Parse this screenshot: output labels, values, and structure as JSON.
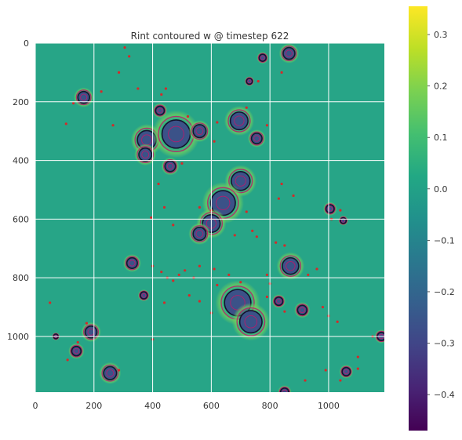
{
  "chart_data": {
    "type": "heatmap",
    "title": "Rint contoured w @ timestep 622",
    "xlabel": "",
    "ylabel": "",
    "xlim": [
      0,
      1190
    ],
    "ylim": [
      1190,
      0
    ],
    "xticks": [
      0,
      200,
      400,
      600,
      800,
      1000
    ],
    "yticks": [
      0,
      200,
      400,
      600,
      800,
      1000
    ],
    "grid": true,
    "colormap": "viridis",
    "colorbar": {
      "min": -0.47,
      "max": 0.355,
      "ticks": [
        0.3,
        0.2,
        0.1,
        0.0,
        -0.1,
        -0.2,
        -0.3,
        -0.4
      ],
      "tick_labels": [
        "0.3",
        "0.2",
        "0.1",
        "0.0",
        "−0.1",
        "−0.2",
        "−0.3",
        "−0.4"
      ]
    },
    "background_value": 0.03,
    "colors": {
      "field": "#27a587",
      "field_light": "#35b779",
      "dark_region": "#3b5288",
      "contour_dark": "#14142e",
      "contour_magenta": "#c0176a",
      "droplet_red": "#d42a2a"
    },
    "features": [
      {
        "x": 865,
        "y": 35,
        "r": 20
      },
      {
        "x": 775,
        "y": 50,
        "r": 12
      },
      {
        "x": 730,
        "y": 130,
        "r": 10
      },
      {
        "x": 165,
        "y": 185,
        "r": 20
      },
      {
        "x": 425,
        "y": 230,
        "r": 15
      },
      {
        "x": 695,
        "y": 265,
        "r": 30
      },
      {
        "x": 755,
        "y": 325,
        "r": 18
      },
      {
        "x": 380,
        "y": 330,
        "r": 32
      },
      {
        "x": 480,
        "y": 310,
        "r": 48
      },
      {
        "x": 560,
        "y": 300,
        "r": 22
      },
      {
        "x": 375,
        "y": 380,
        "r": 22
      },
      {
        "x": 460,
        "y": 420,
        "r": 18
      },
      {
        "x": 700,
        "y": 470,
        "r": 32
      },
      {
        "x": 640,
        "y": 545,
        "r": 42
      },
      {
        "x": 600,
        "y": 615,
        "r": 30
      },
      {
        "x": 560,
        "y": 650,
        "r": 22
      },
      {
        "x": 1005,
        "y": 565,
        "r": 14
      },
      {
        "x": 1050,
        "y": 605,
        "r": 10
      },
      {
        "x": 330,
        "y": 750,
        "r": 18
      },
      {
        "x": 870,
        "y": 760,
        "r": 28
      },
      {
        "x": 370,
        "y": 860,
        "r": 12
      },
      {
        "x": 690,
        "y": 885,
        "r": 45
      },
      {
        "x": 735,
        "y": 950,
        "r": 38
      },
      {
        "x": 830,
        "y": 880,
        "r": 14
      },
      {
        "x": 910,
        "y": 910,
        "r": 16
      },
      {
        "x": 190,
        "y": 985,
        "r": 20
      },
      {
        "x": 140,
        "y": 1050,
        "r": 16
      },
      {
        "x": 70,
        "y": 1000,
        "r": 8
      },
      {
        "x": 1180,
        "y": 1000,
        "r": 14
      },
      {
        "x": 255,
        "y": 1125,
        "r": 22
      },
      {
        "x": 1060,
        "y": 1120,
        "r": 14
      },
      {
        "x": 850,
        "y": 1190,
        "r": 14
      }
    ],
    "droplets": [
      {
        "x": 305,
        "y": 15
      },
      {
        "x": 320,
        "y": 45
      },
      {
        "x": 285,
        "y": 100
      },
      {
        "x": 350,
        "y": 155
      },
      {
        "x": 225,
        "y": 165
      },
      {
        "x": 130,
        "y": 205
      },
      {
        "x": 105,
        "y": 275
      },
      {
        "x": 265,
        "y": 280
      },
      {
        "x": 430,
        "y": 175
      },
      {
        "x": 445,
        "y": 155
      },
      {
        "x": 520,
        "y": 250
      },
      {
        "x": 610,
        "y": 335
      },
      {
        "x": 620,
        "y": 270
      },
      {
        "x": 790,
        "y": 280
      },
      {
        "x": 720,
        "y": 220
      },
      {
        "x": 840,
        "y": 100
      },
      {
        "x": 760,
        "y": 130
      },
      {
        "x": 840,
        "y": 480
      },
      {
        "x": 830,
        "y": 530
      },
      {
        "x": 880,
        "y": 520
      },
      {
        "x": 1040,
        "y": 570
      },
      {
        "x": 1010,
        "y": 600
      },
      {
        "x": 560,
        "y": 560
      },
      {
        "x": 720,
        "y": 575
      },
      {
        "x": 740,
        "y": 640
      },
      {
        "x": 755,
        "y": 660
      },
      {
        "x": 680,
        "y": 655
      },
      {
        "x": 820,
        "y": 680
      },
      {
        "x": 850,
        "y": 690
      },
      {
        "x": 400,
        "y": 760
      },
      {
        "x": 430,
        "y": 780
      },
      {
        "x": 450,
        "y": 800
      },
      {
        "x": 470,
        "y": 810
      },
      {
        "x": 490,
        "y": 790
      },
      {
        "x": 510,
        "y": 775
      },
      {
        "x": 540,
        "y": 800
      },
      {
        "x": 560,
        "y": 760
      },
      {
        "x": 610,
        "y": 770
      },
      {
        "x": 620,
        "y": 825
      },
      {
        "x": 660,
        "y": 790
      },
      {
        "x": 700,
        "y": 815
      },
      {
        "x": 790,
        "y": 790
      },
      {
        "x": 800,
        "y": 820
      },
      {
        "x": 930,
        "y": 790
      },
      {
        "x": 960,
        "y": 770
      },
      {
        "x": 440,
        "y": 885
      },
      {
        "x": 525,
        "y": 860
      },
      {
        "x": 560,
        "y": 880
      },
      {
        "x": 600,
        "y": 920
      },
      {
        "x": 790,
        "y": 865
      },
      {
        "x": 850,
        "y": 915
      },
      {
        "x": 980,
        "y": 900
      },
      {
        "x": 1000,
        "y": 930
      },
      {
        "x": 1030,
        "y": 950
      },
      {
        "x": 400,
        "y": 1010
      },
      {
        "x": 285,
        "y": 1115
      },
      {
        "x": 145,
        "y": 1020
      },
      {
        "x": 175,
        "y": 955
      },
      {
        "x": 110,
        "y": 1080
      },
      {
        "x": 50,
        "y": 885
      },
      {
        "x": 1100,
        "y": 1110
      },
      {
        "x": 1040,
        "y": 1150
      },
      {
        "x": 1150,
        "y": 1000
      },
      {
        "x": 1100,
        "y": 1070
      },
      {
        "x": 920,
        "y": 1150
      },
      {
        "x": 990,
        "y": 1115
      },
      {
        "x": 600,
        "y": 570
      },
      {
        "x": 470,
        "y": 620
      },
      {
        "x": 395,
        "y": 595
      },
      {
        "x": 440,
        "y": 560
      },
      {
        "x": 420,
        "y": 480
      },
      {
        "x": 500,
        "y": 410
      }
    ]
  }
}
